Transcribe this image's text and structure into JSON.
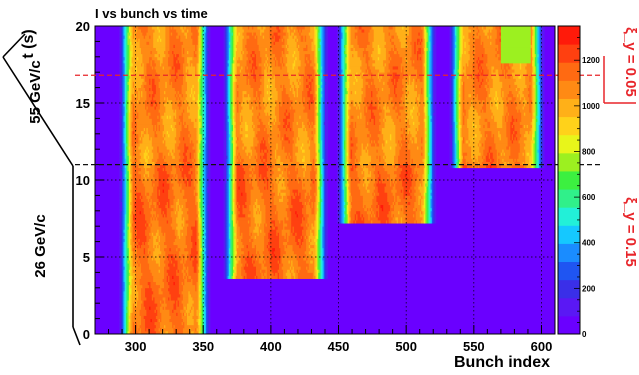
{
  "chart_data": {
    "type": "heatmap",
    "title": "I vs bunch vs time",
    "xlabel": "Bunch index",
    "ylabel": "t (s)",
    "xlim": [
      270,
      610
    ],
    "ylim": [
      0,
      20
    ],
    "x_ticks": [
      "300",
      "350",
      "400",
      "450",
      "500",
      "550",
      "600"
    ],
    "y_ticks": [
      "0",
      "5",
      "10",
      "15",
      "20"
    ],
    "z_range": [
      0,
      1350
    ],
    "colorbar_ticks": [
      "0",
      "200",
      "400",
      "600",
      "800",
      "1000",
      "1200"
    ],
    "grid": true,
    "filled_bunch_trains": [
      {
        "start": 288,
        "end": 355,
        "fill_time": 0
      },
      {
        "start": 365,
        "end": 442,
        "fill_time": 3.6
      },
      {
        "start": 449,
        "end": 522,
        "fill_time": 7.2
      },
      {
        "start": 532,
        "end": 602,
        "fill_time": 10.8
      }
    ],
    "empty_level": 0,
    "typical_intensity_low_energy": 1130,
    "typical_intensity_high_energy": 1080,
    "annotations": {
      "energy_low": "26 GeV/c",
      "energy_high": "55 GeV/c",
      "tune_low": "ξ_y = 0.15",
      "tune_high": "ξ_y = 0.05",
      "energy_change_time": 11.0,
      "tune_marker_time": 16.8
    },
    "palette": [
      "#6a00ff",
      "#5a18f4",
      "#3a2fe8",
      "#1f55f2",
      "#1a8cff",
      "#15c8ff",
      "#22f0d8",
      "#30f08a",
      "#3cf040",
      "#9cf020",
      "#e8f51a",
      "#ffd21a",
      "#ffb018",
      "#ff8a14",
      "#ff6a12",
      "#ff4010",
      "#ff1a0a"
    ],
    "colors": {
      "high_energy_line": "#e8252a",
      "low_energy_line": "#111111"
    }
  }
}
